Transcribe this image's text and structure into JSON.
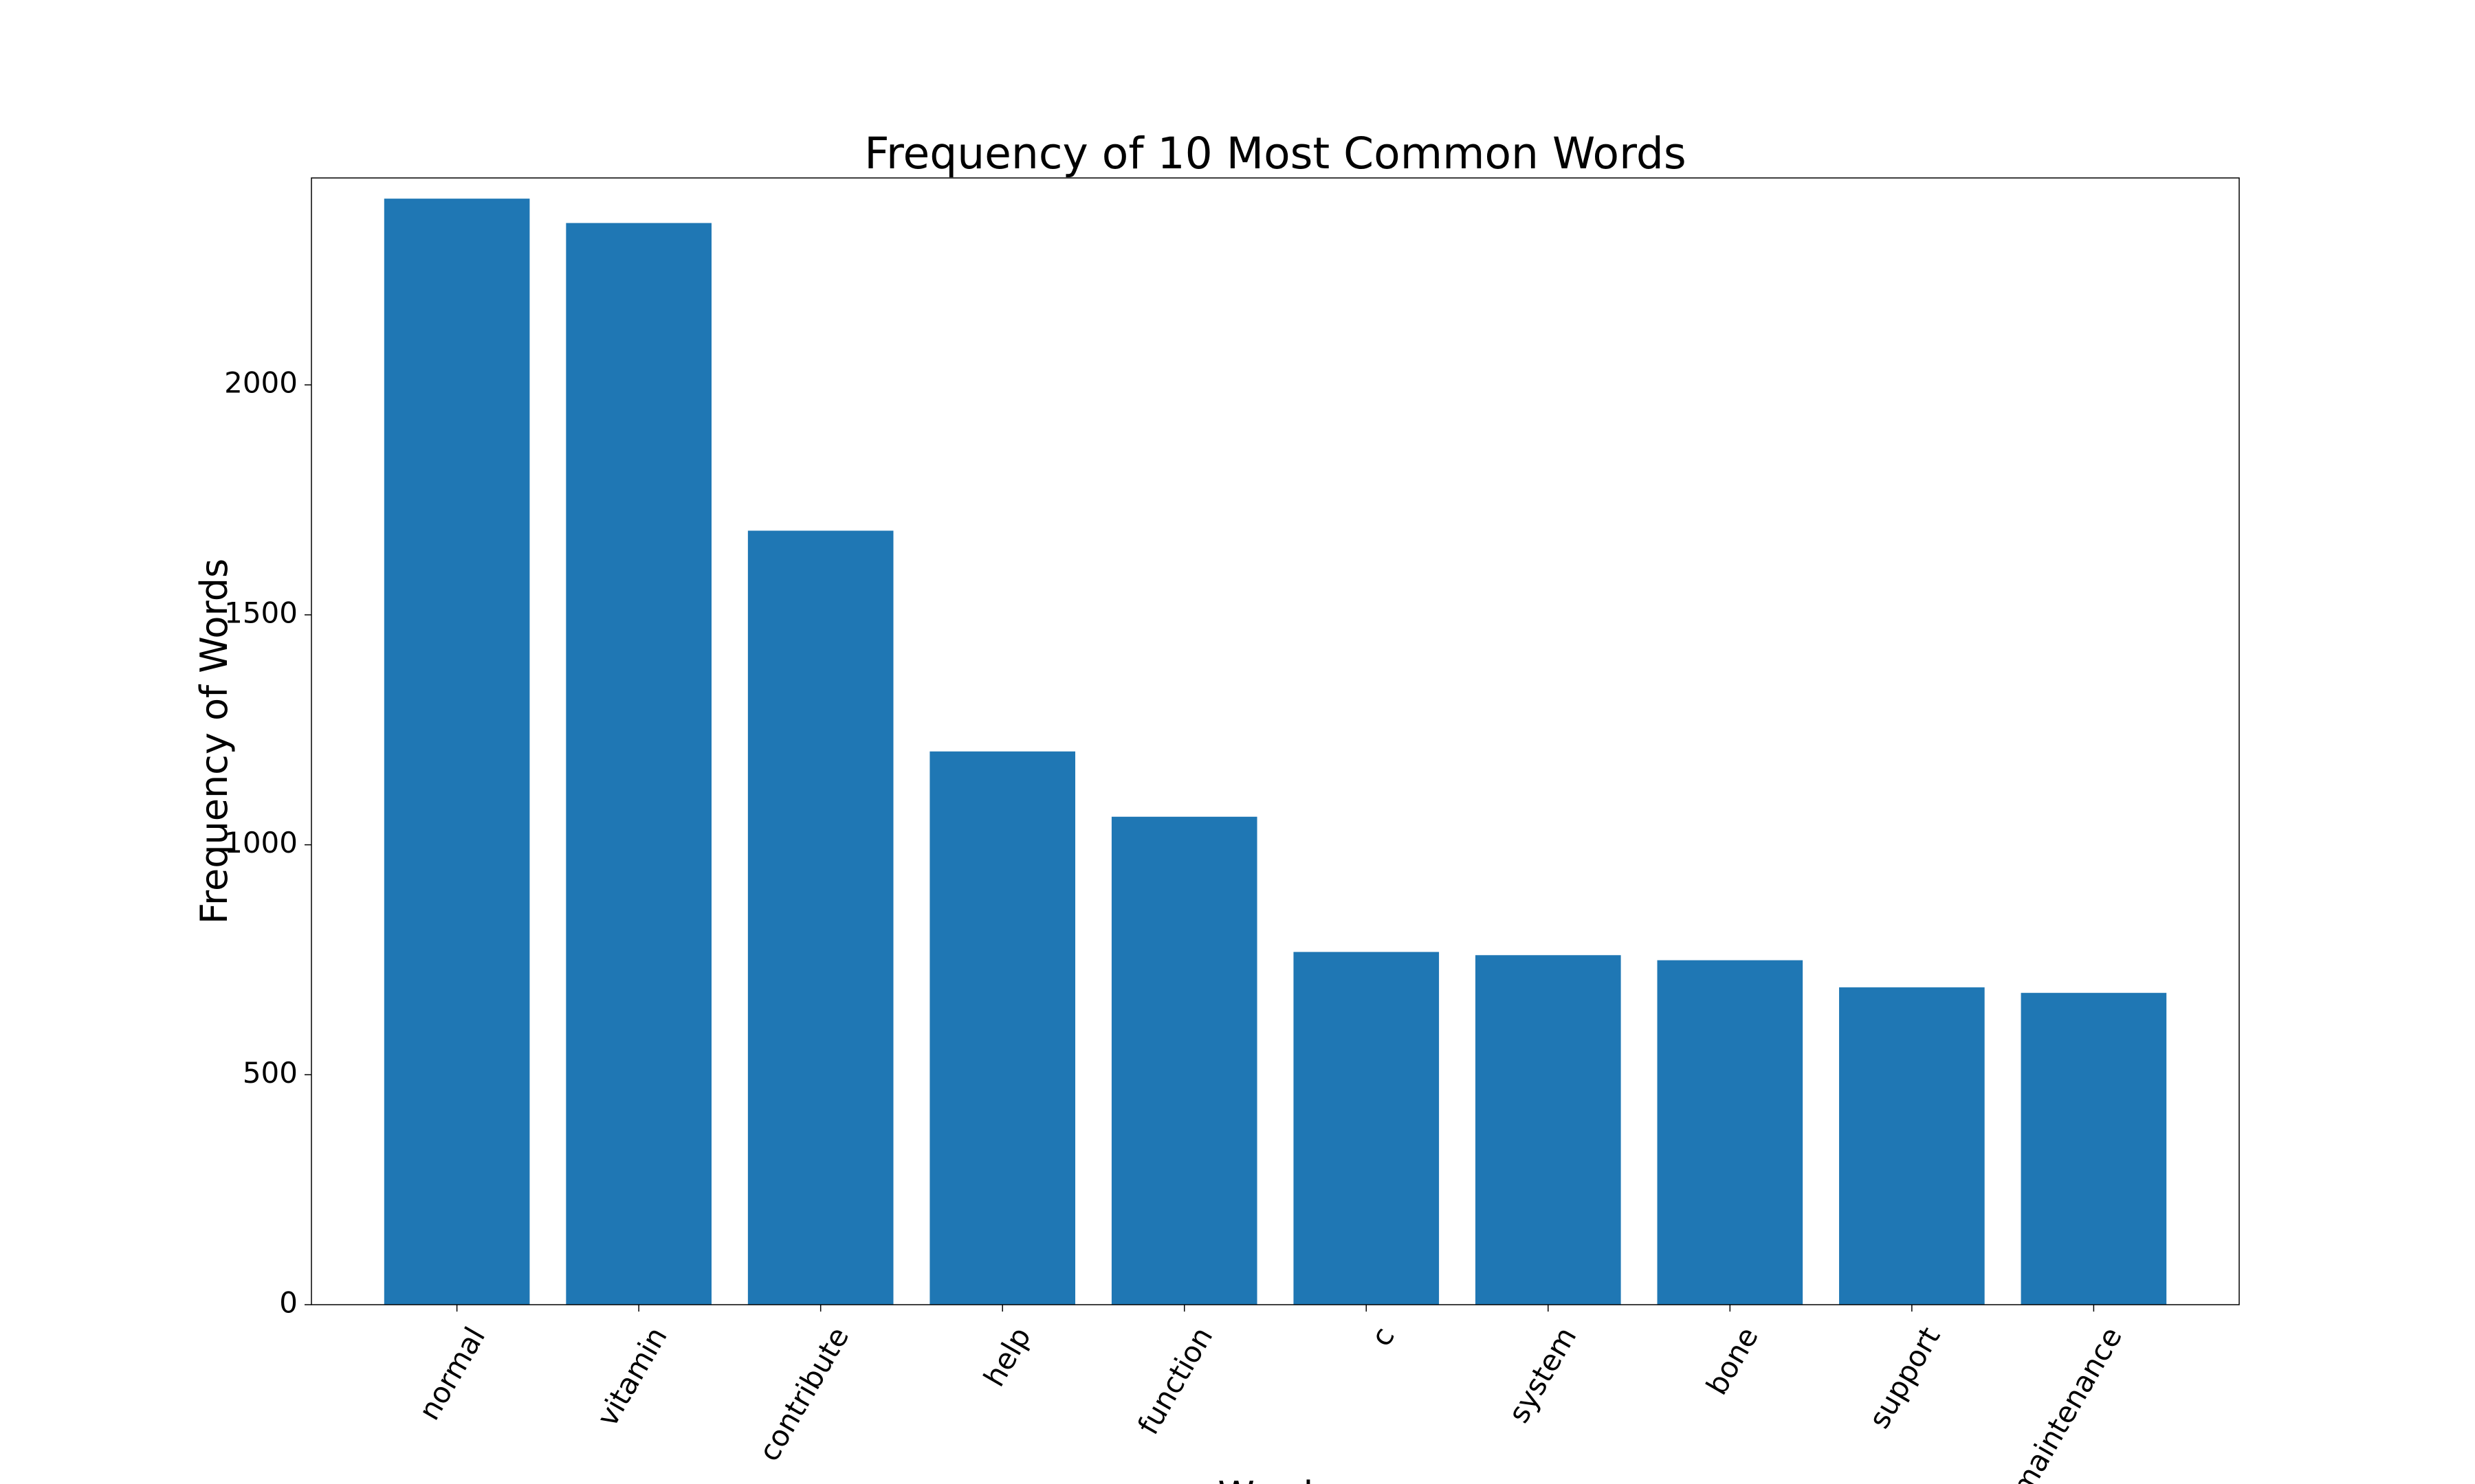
{
  "chart_data": {
    "type": "bar",
    "title": "Frequency of 10 Most Common Words",
    "xlabel": "Words",
    "ylabel": "Frequency of Words",
    "categories": [
      "normal",
      "vitamin",
      "contribute",
      "help",
      "function",
      "c",
      "system",
      "bone",
      "support",
      "maintenance"
    ],
    "values": [
      2405,
      2352,
      1683,
      1203,
      1061,
      767,
      760,
      749,
      690,
      678
    ],
    "ylim": [
      0,
      2450
    ],
    "yticks": [
      0,
      500,
      1000,
      1500,
      2000
    ],
    "bar_color": "#1f77b4",
    "grid": false,
    "legend": "none"
  }
}
